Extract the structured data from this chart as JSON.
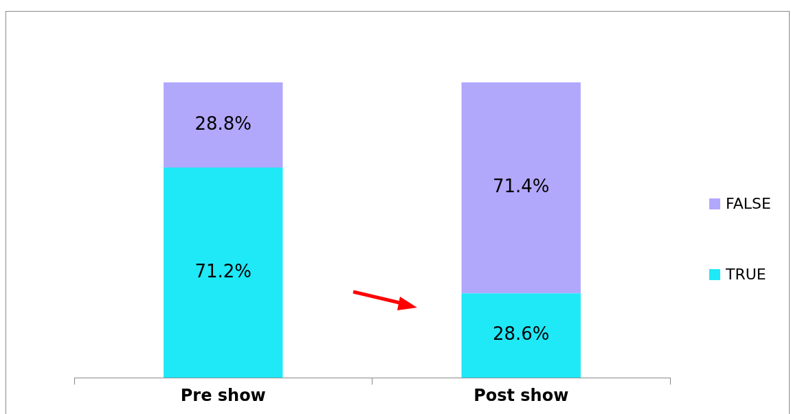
{
  "chart_data": {
    "type": "bar",
    "stacked": true,
    "categories": [
      "Pre show",
      "Post show"
    ],
    "series": [
      {
        "name": "TRUE",
        "color": "#1fe8f7",
        "values": [
          71.2,
          28.6
        ],
        "value_labels": [
          "71.2%",
          "28.6%"
        ]
      },
      {
        "name": "FALSE",
        "color": "#b1a8fc",
        "values": [
          28.8,
          71.4
        ],
        "value_labels": [
          "28.8%",
          "71.4%"
        ]
      }
    ],
    "legend": "right",
    "grid": false
  }
}
